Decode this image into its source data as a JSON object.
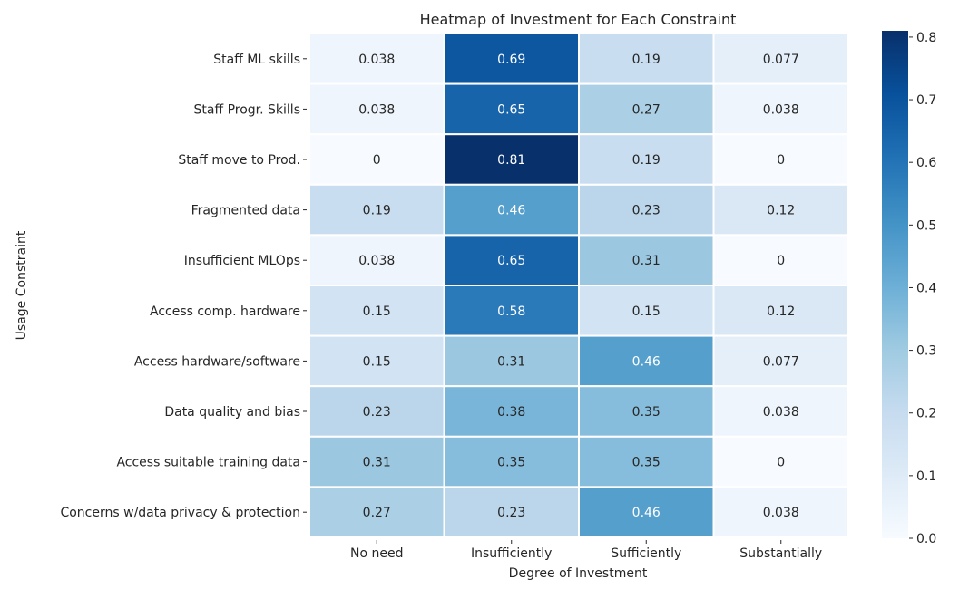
{
  "chart_data": {
    "type": "heatmap",
    "title": "Heatmap of Investment for Each Constraint",
    "xlabel": "Degree of Investment",
    "ylabel": "Usage Constraint",
    "x_categories": [
      "No need",
      "Insufficiently",
      "Sufficiently",
      "Substantially"
    ],
    "y_categories": [
      "Staff ML skills",
      "Staff Progr. Skills",
      "Staff move to Prod.",
      "Fragmented data",
      "Insufficient MLOps",
      "Access comp. hardware",
      "Access hardware/software",
      "Data quality and bias",
      "Access suitable training data",
      "Concerns w/data privacy & protection"
    ],
    "values": [
      [
        0.038,
        0.69,
        0.19,
        0.077
      ],
      [
        0.038,
        0.65,
        0.27,
        0.038
      ],
      [
        0,
        0.81,
        0.19,
        0
      ],
      [
        0.19,
        0.46,
        0.23,
        0.12
      ],
      [
        0.038,
        0.65,
        0.31,
        0
      ],
      [
        0.15,
        0.58,
        0.15,
        0.12
      ],
      [
        0.15,
        0.31,
        0.46,
        0.077
      ],
      [
        0.23,
        0.38,
        0.35,
        0.038
      ],
      [
        0.31,
        0.35,
        0.35,
        0
      ],
      [
        0.27,
        0.23,
        0.46,
        0.038
      ]
    ],
    "value_labels": [
      [
        "0.038",
        "0.69",
        "0.19",
        "0.077"
      ],
      [
        "0.038",
        "0.65",
        "0.27",
        "0.038"
      ],
      [
        "0",
        "0.81",
        "0.19",
        "0"
      ],
      [
        "0.19",
        "0.46",
        "0.23",
        "0.12"
      ],
      [
        "0.038",
        "0.65",
        "0.31",
        "0"
      ],
      [
        "0.15",
        "0.58",
        "0.15",
        "0.12"
      ],
      [
        "0.15",
        "0.31",
        "0.46",
        "0.077"
      ],
      [
        "0.23",
        "0.38",
        "0.35",
        "0.038"
      ],
      [
        "0.31",
        "0.35",
        "0.35",
        "0"
      ],
      [
        "0.27",
        "0.23",
        "0.46",
        "0.038"
      ]
    ],
    "colormap": "Blues",
    "colorbar": {
      "range": [
        0,
        0.81
      ],
      "ticks": [
        0.0,
        0.1,
        0.2,
        0.3,
        0.4,
        0.5,
        0.6,
        0.7,
        0.8
      ],
      "tick_labels": [
        "0.0",
        "0.1",
        "0.2",
        "0.3",
        "0.4",
        "0.5",
        "0.6",
        "0.7",
        "0.8"
      ],
      "placement": "right"
    },
    "grid": false,
    "cell_separator_color": "#ffffff"
  }
}
